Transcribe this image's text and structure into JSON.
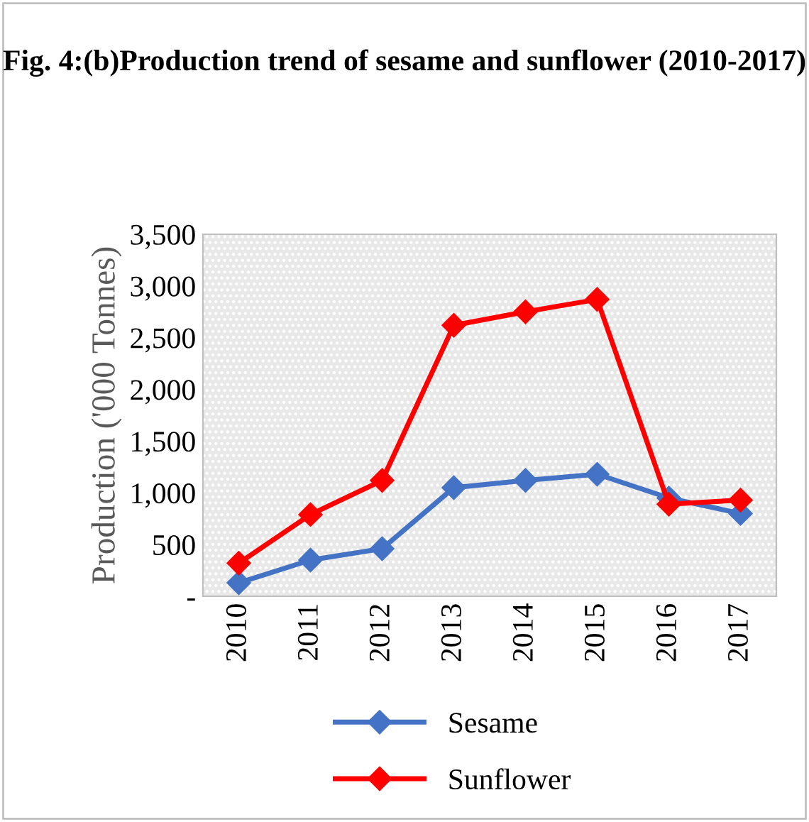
{
  "chart_data": {
    "type": "line",
    "title": "Fig. 4:(b)Production trend of sesame and sunflower (2010-2017)",
    "ylabel": "Production ('000 Tonnes)",
    "categories": [
      "2010",
      "2011",
      "2012",
      "2013",
      "2014",
      "2015",
      "2016",
      "2017"
    ],
    "series": [
      {
        "name": "Sesame",
        "color": "#4472c4",
        "values": [
          130,
          350,
          460,
          1050,
          1120,
          1180,
          950,
          800
        ]
      },
      {
        "name": "Sunflower",
        "color": "#ff0000",
        "values": [
          320,
          790,
          1120,
          2620,
          2750,
          2870,
          890,
          930
        ]
      }
    ],
    "ylim": [
      0,
      3500
    ],
    "yticks": [
      {
        "value": 0,
        "label": "-"
      },
      {
        "value": 500,
        "label": "500"
      },
      {
        "value": 1000,
        "label": "1,000"
      },
      {
        "value": 1500,
        "label": "1,500"
      },
      {
        "value": 2000,
        "label": "2,000"
      },
      {
        "value": 2500,
        "label": "2,500"
      },
      {
        "value": 3000,
        "label": "3,000"
      },
      {
        "value": 3500,
        "label": "3,500"
      }
    ],
    "marker": "diamond",
    "grid": false,
    "legend": "bottom"
  }
}
